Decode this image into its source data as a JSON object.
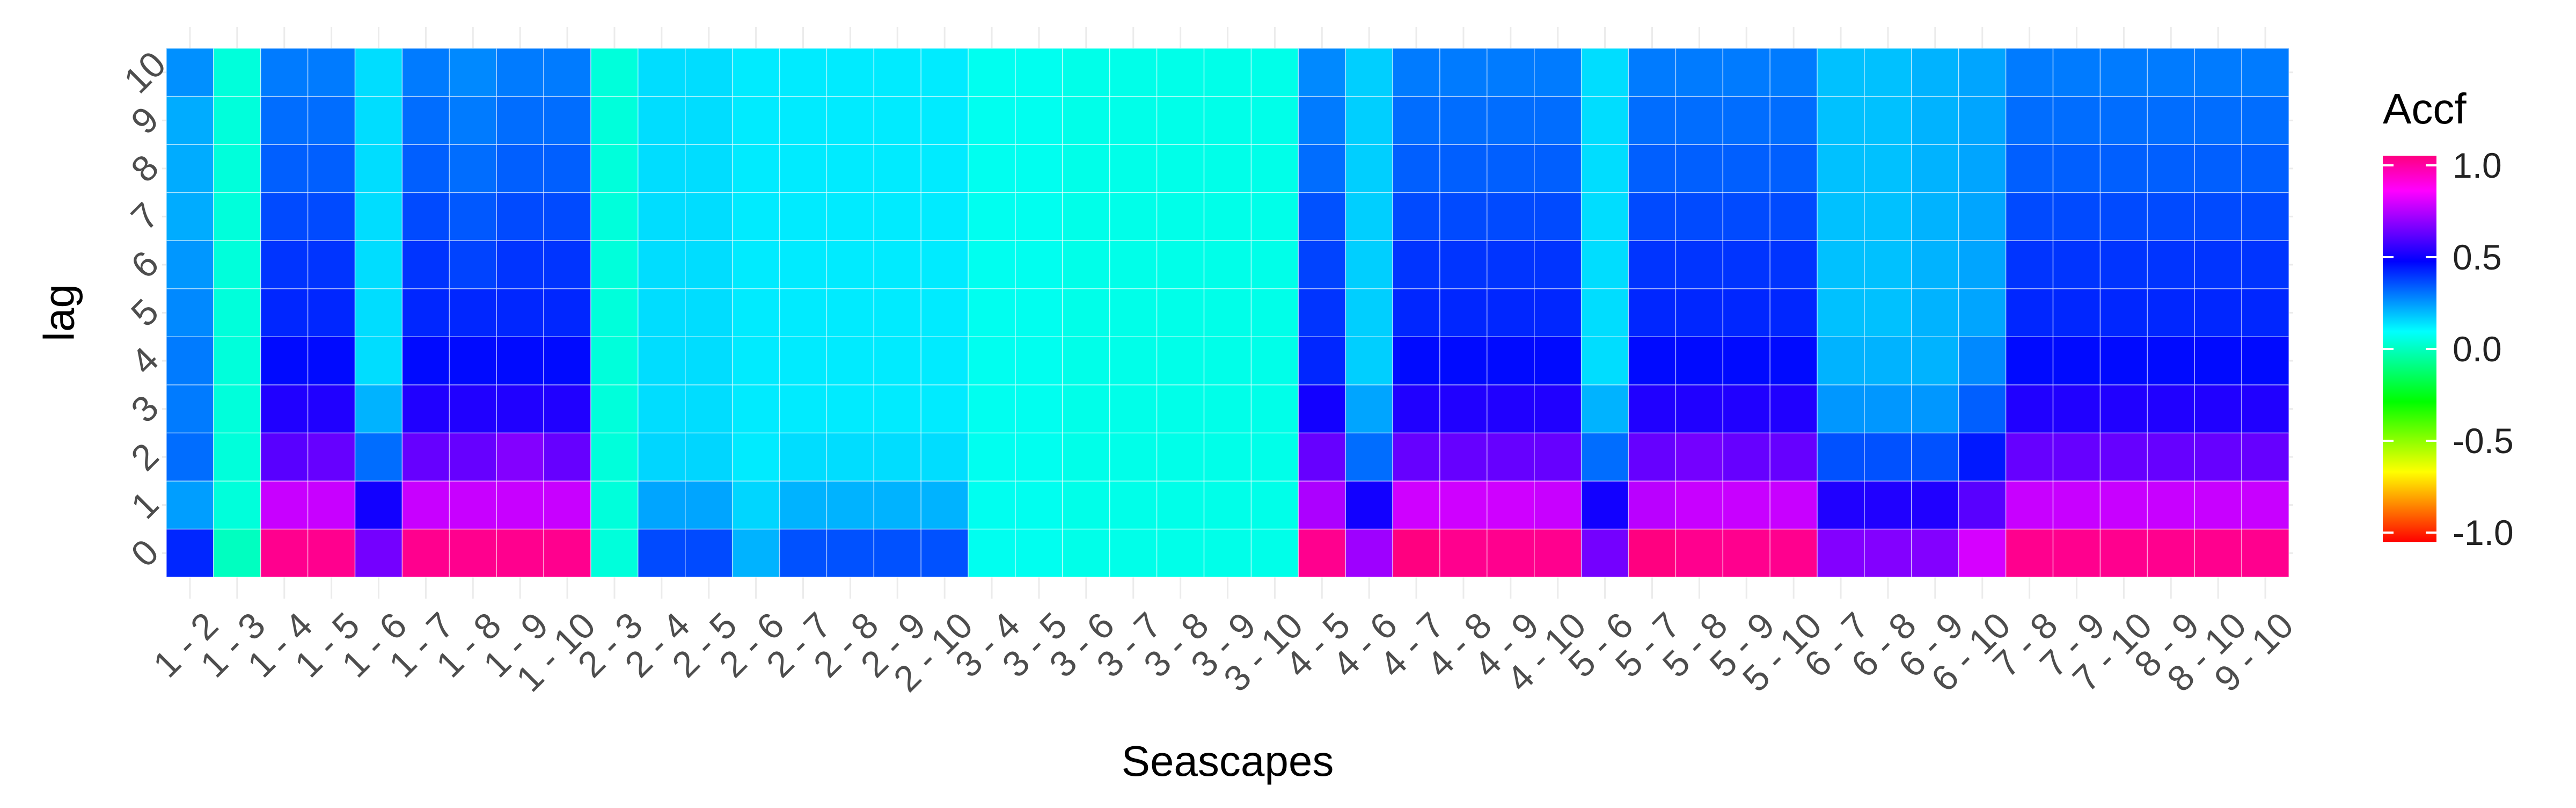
{
  "chart_data": {
    "type": "heatmap",
    "title": "",
    "xlabel": "Seascapes",
    "ylabel": "lag",
    "legend_title": "Accf",
    "legend_position": "right",
    "legend_ticks": [
      "1.0",
      "0.5",
      "0.0",
      "-0.5",
      "-1.0"
    ],
    "color_range": [
      -1.0,
      1.0
    ],
    "color_stops": [
      "#ff0000",
      "#ff8000",
      "#ffff00",
      "#80ff00",
      "#00ff00",
      "#00ff80",
      "#00ffff",
      "#0080ff",
      "#0000ff",
      "#8000ff",
      "#ff00ff",
      "#ff0080"
    ],
    "grid": true,
    "x_categories": [
      "1 - 2",
      "1 - 3",
      "1 - 4",
      "1 - 5",
      "1 - 6",
      "1 - 7",
      "1 - 8",
      "1 - 9",
      "1 - 10",
      "2 - 3",
      "2 - 4",
      "2 - 5",
      "2 - 6",
      "2 - 7",
      "2 - 8",
      "2 - 9",
      "2 - 10",
      "3 - 4",
      "3 - 5",
      "3 - 6",
      "3 - 7",
      "3 - 8",
      "3 - 9",
      "3 - 10",
      "4 - 5",
      "4 - 6",
      "4 - 7",
      "4 - 8",
      "4 - 9",
      "4 - 10",
      "5 - 6",
      "5 - 7",
      "5 - 8",
      "5 - 9",
      "5 - 10",
      "6 - 7",
      "6 - 8",
      "6 - 9",
      "6 - 10",
      "7 - 8",
      "7 - 9",
      "7 - 10",
      "8 - 9",
      "8 - 10",
      "9 - 10"
    ],
    "y_categories": [
      "0",
      "1",
      "2",
      "3",
      "4",
      "5",
      "6",
      "7",
      "8",
      "9",
      "10"
    ],
    "values": [
      [
        0.4,
        0.23,
        0.3,
        0.28,
        0.28,
        0.26,
        0.24,
        0.21,
        0.21,
        0.21,
        0.25
      ],
      [
        0.0,
        0.04,
        0.04,
        0.04,
        0.04,
        0.04,
        0.04,
        0.04,
        0.04,
        0.04,
        0.04
      ],
      [
        0.98,
        0.74,
        0.58,
        0.5,
        0.44,
        0.4,
        0.38,
        0.35,
        0.32,
        0.3,
        0.28
      ],
      [
        0.98,
        0.74,
        0.6,
        0.5,
        0.44,
        0.4,
        0.38,
        0.35,
        0.32,
        0.3,
        0.28
      ],
      [
        0.62,
        0.48,
        0.3,
        0.2,
        0.14,
        0.14,
        0.14,
        0.14,
        0.14,
        0.14,
        0.14
      ],
      [
        0.98,
        0.74,
        0.6,
        0.5,
        0.44,
        0.4,
        0.38,
        0.35,
        0.32,
        0.3,
        0.28
      ],
      [
        0.98,
        0.74,
        0.6,
        0.5,
        0.44,
        0.4,
        0.36,
        0.33,
        0.3,
        0.28,
        0.26
      ],
      [
        0.98,
        0.74,
        0.64,
        0.5,
        0.44,
        0.4,
        0.38,
        0.35,
        0.32,
        0.3,
        0.28
      ],
      [
        0.98,
        0.74,
        0.6,
        0.5,
        0.44,
        0.4,
        0.38,
        0.35,
        0.32,
        0.3,
        0.28
      ],
      [
        0.04,
        0.04,
        0.04,
        0.04,
        0.04,
        0.04,
        0.04,
        0.04,
        0.04,
        0.04,
        0.04
      ],
      [
        0.35,
        0.22,
        0.15,
        0.14,
        0.14,
        0.14,
        0.14,
        0.14,
        0.14,
        0.14,
        0.14
      ],
      [
        0.35,
        0.22,
        0.15,
        0.14,
        0.14,
        0.14,
        0.14,
        0.14,
        0.14,
        0.14,
        0.14
      ],
      [
        0.2,
        0.15,
        0.12,
        0.12,
        0.12,
        0.12,
        0.12,
        0.12,
        0.12,
        0.12,
        0.12
      ],
      [
        0.34,
        0.2,
        0.14,
        0.12,
        0.12,
        0.12,
        0.12,
        0.12,
        0.12,
        0.12,
        0.12
      ],
      [
        0.34,
        0.2,
        0.14,
        0.12,
        0.12,
        0.12,
        0.12,
        0.12,
        0.12,
        0.12,
        0.12
      ],
      [
        0.34,
        0.2,
        0.14,
        0.12,
        0.12,
        0.12,
        0.12,
        0.12,
        0.12,
        0.12,
        0.12
      ],
      [
        0.34,
        0.2,
        0.14,
        0.12,
        0.12,
        0.12,
        0.12,
        0.12,
        0.12,
        0.12,
        0.12
      ],
      [
        0.07,
        0.07,
        0.07,
        0.07,
        0.07,
        0.07,
        0.07,
        0.07,
        0.07,
        0.07,
        0.07
      ],
      [
        0.07,
        0.07,
        0.07,
        0.07,
        0.07,
        0.07,
        0.07,
        0.07,
        0.07,
        0.07,
        0.07
      ],
      [
        0.06,
        0.06,
        0.06,
        0.06,
        0.06,
        0.06,
        0.06,
        0.06,
        0.06,
        0.06,
        0.06
      ],
      [
        0.06,
        0.06,
        0.06,
        0.06,
        0.06,
        0.06,
        0.06,
        0.06,
        0.06,
        0.06,
        0.06
      ],
      [
        0.06,
        0.06,
        0.06,
        0.06,
        0.06,
        0.06,
        0.06,
        0.06,
        0.06,
        0.06,
        0.06
      ],
      [
        0.06,
        0.06,
        0.06,
        0.06,
        0.06,
        0.06,
        0.06,
        0.06,
        0.06,
        0.06,
        0.06
      ],
      [
        0.06,
        0.06,
        0.06,
        0.06,
        0.06,
        0.06,
        0.06,
        0.06,
        0.06,
        0.06,
        0.06
      ],
      [
        0.98,
        0.7,
        0.6,
        0.48,
        0.4,
        0.38,
        0.36,
        0.34,
        0.3,
        0.28,
        0.26
      ],
      [
        0.68,
        0.48,
        0.3,
        0.22,
        0.16,
        0.16,
        0.16,
        0.16,
        0.16,
        0.16,
        0.16
      ],
      [
        1.0,
        0.75,
        0.6,
        0.5,
        0.44,
        0.4,
        0.38,
        0.35,
        0.32,
        0.3,
        0.28
      ],
      [
        0.98,
        0.75,
        0.6,
        0.5,
        0.44,
        0.4,
        0.38,
        0.35,
        0.32,
        0.3,
        0.28
      ],
      [
        0.98,
        0.75,
        0.6,
        0.5,
        0.44,
        0.4,
        0.38,
        0.35,
        0.32,
        0.3,
        0.28
      ],
      [
        0.98,
        0.74,
        0.6,
        0.5,
        0.44,
        0.4,
        0.38,
        0.35,
        0.32,
        0.3,
        0.28
      ],
      [
        0.62,
        0.48,
        0.3,
        0.2,
        0.14,
        0.14,
        0.14,
        0.14,
        0.14,
        0.14,
        0.14
      ],
      [
        1.0,
        0.72,
        0.6,
        0.5,
        0.44,
        0.4,
        0.38,
        0.35,
        0.32,
        0.3,
        0.28
      ],
      [
        0.98,
        0.74,
        0.62,
        0.5,
        0.44,
        0.4,
        0.38,
        0.35,
        0.32,
        0.3,
        0.28
      ],
      [
        0.98,
        0.74,
        0.6,
        0.5,
        0.44,
        0.4,
        0.38,
        0.35,
        0.32,
        0.3,
        0.28
      ],
      [
        0.98,
        0.74,
        0.6,
        0.5,
        0.44,
        0.4,
        0.38,
        0.35,
        0.32,
        0.3,
        0.28
      ],
      [
        0.64,
        0.5,
        0.34,
        0.24,
        0.2,
        0.18,
        0.18,
        0.18,
        0.18,
        0.18,
        0.18
      ],
      [
        0.64,
        0.5,
        0.34,
        0.24,
        0.2,
        0.18,
        0.18,
        0.18,
        0.18,
        0.18,
        0.18
      ],
      [
        0.64,
        0.5,
        0.34,
        0.24,
        0.2,
        0.2,
        0.2,
        0.2,
        0.2,
        0.2,
        0.2
      ],
      [
        0.76,
        0.58,
        0.42,
        0.32,
        0.26,
        0.22,
        0.22,
        0.22,
        0.22,
        0.22,
        0.22
      ],
      [
        0.98,
        0.74,
        0.6,
        0.5,
        0.44,
        0.4,
        0.38,
        0.35,
        0.32,
        0.3,
        0.28
      ],
      [
        0.98,
        0.74,
        0.6,
        0.5,
        0.44,
        0.4,
        0.38,
        0.35,
        0.32,
        0.3,
        0.28
      ],
      [
        0.98,
        0.74,
        0.6,
        0.5,
        0.44,
        0.4,
        0.38,
        0.35,
        0.32,
        0.3,
        0.28
      ],
      [
        0.98,
        0.74,
        0.6,
        0.5,
        0.44,
        0.4,
        0.38,
        0.35,
        0.32,
        0.3,
        0.28
      ],
      [
        0.98,
        0.74,
        0.6,
        0.5,
        0.44,
        0.4,
        0.38,
        0.35,
        0.32,
        0.3,
        0.28
      ],
      [
        0.98,
        0.74,
        0.6,
        0.5,
        0.44,
        0.4,
        0.38,
        0.35,
        0.32,
        0.3,
        0.28
      ]
    ]
  }
}
